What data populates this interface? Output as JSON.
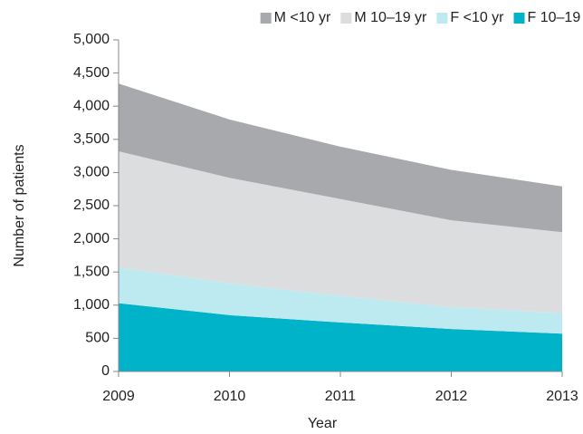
{
  "chart_data": {
    "type": "stacked_area",
    "x_label": "Year",
    "y_label": "Number of patients",
    "x": [
      2009,
      2010,
      2011,
      2012,
      2013
    ],
    "xlim": [
      2009,
      2013
    ],
    "xticks": [
      2009,
      2010,
      2011,
      2012,
      2013
    ],
    "ylim": [
      0,
      5000
    ],
    "yticks": [
      0,
      500,
      {
        "value": 1000,
        "label": "1,000"
      },
      {
        "value": 1500,
        "label": "1,500"
      },
      {
        "value": 2000,
        "label": "2,000"
      },
      {
        "value": 2500,
        "label": "2,500"
      },
      {
        "value": 3000,
        "label": "3,000"
      },
      {
        "value": 3500,
        "label": "3,500"
      },
      {
        "value": 4000,
        "label": "4,000"
      },
      {
        "value": 4500,
        "label": "4,500"
      },
      {
        "value": 5000,
        "label": "5,000"
      }
    ],
    "legend": "top-right",
    "series": [
      {
        "name": "F 10–19 yr",
        "color": "#00b3c8",
        "values": [
          1030,
          850,
          740,
          640,
          570
        ]
      },
      {
        "name": "F <10 yr",
        "color": "#bde9f0",
        "values": [
          540,
          480,
          400,
          330,
          310
        ]
      },
      {
        "name": "M 10–19 yr",
        "color": "#dcdddf",
        "values": [
          1750,
          1590,
          1460,
          1310,
          1220
        ]
      },
      {
        "name": "M <10 yr",
        "color": "#a7a9ac",
        "values": [
          1020,
          880,
          790,
          760,
          690
        ]
      }
    ]
  }
}
